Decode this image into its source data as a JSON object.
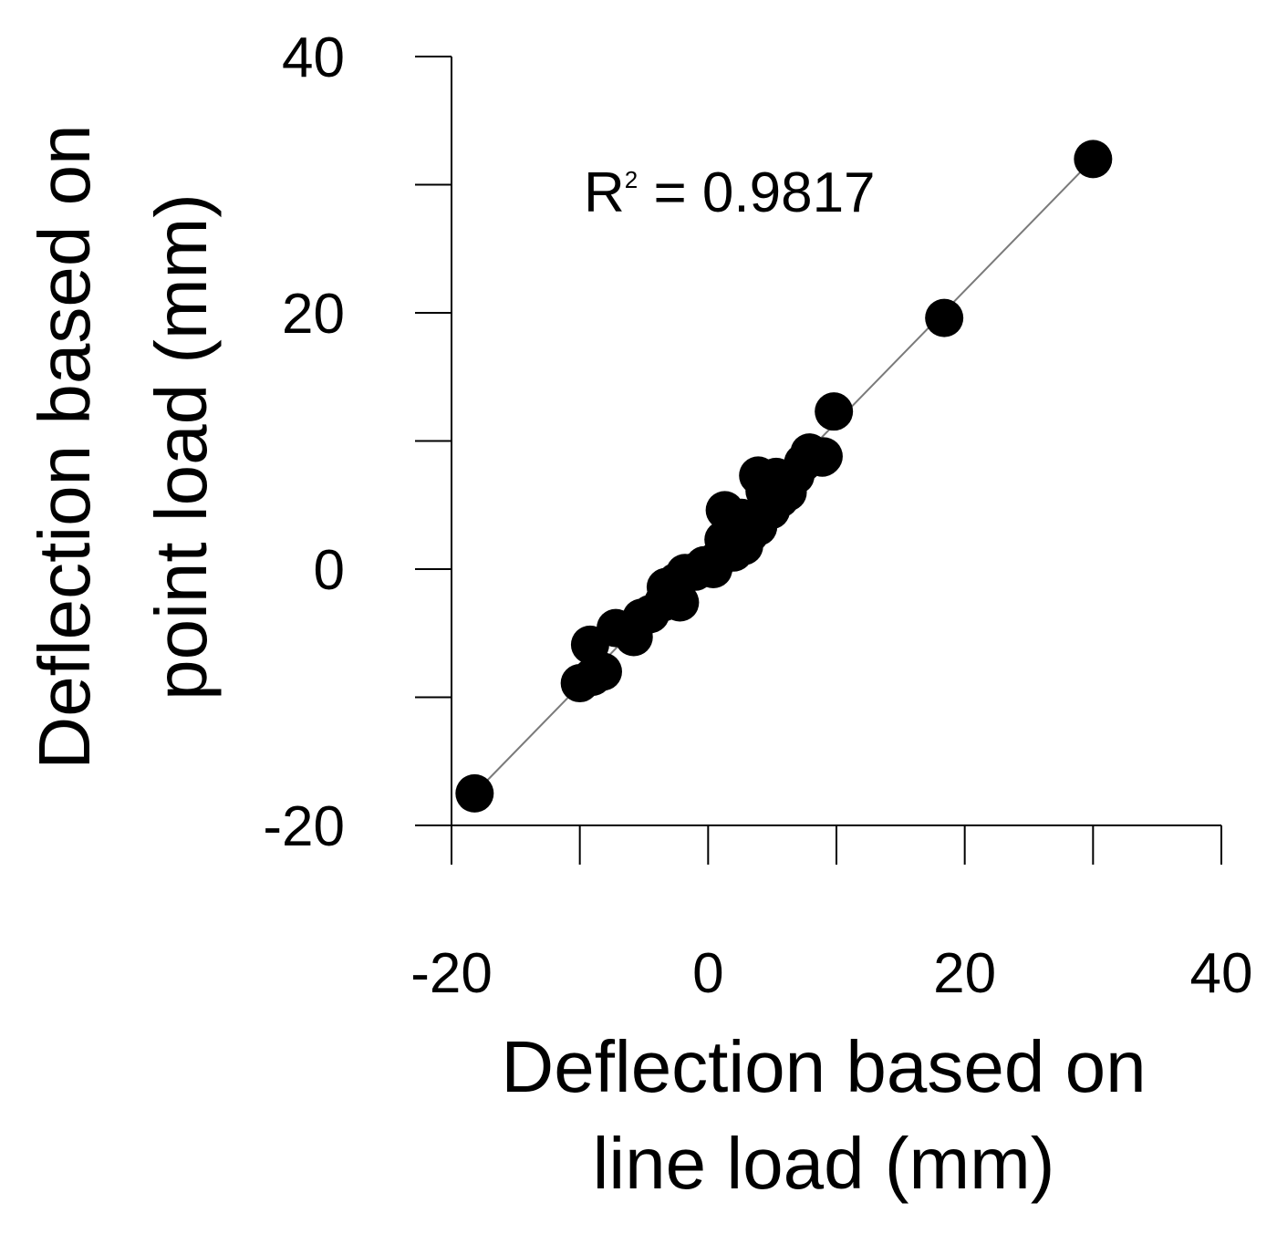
{
  "chart_data": {
    "type": "scatter",
    "title": "",
    "xlabel_lines": [
      "Deflection based on",
      "line load (mm)"
    ],
    "ylabel_lines": [
      "Deflection based on",
      "point load (mm)"
    ],
    "xlim": [
      -20,
      40
    ],
    "ylim": [
      -20,
      40
    ],
    "xticks": [
      -20,
      -10,
      0,
      10,
      20,
      30,
      40
    ],
    "yticks": [
      -20,
      -10,
      0,
      10,
      20,
      30,
      40
    ],
    "xtick_labels": [
      "-20",
      "0",
      "20",
      "40"
    ],
    "ytick_labels": [
      "-20",
      "0",
      "20",
      "40"
    ],
    "grid": false,
    "annotation": {
      "prefix": "R",
      "superscript": "2",
      "suffix": " = 0.9817"
    },
    "trendline": {
      "x": [
        -18.2,
        30
      ],
      "y": [
        -17.5,
        32
      ]
    },
    "series": [
      {
        "name": "Deflection",
        "points": [
          {
            "x": -18.2,
            "y": -17.5
          },
          {
            "x": -10,
            "y": -8.9
          },
          {
            "x": -9,
            "y": -8.4
          },
          {
            "x": -8.2,
            "y": -8.0
          },
          {
            "x": -9.2,
            "y": -5.9
          },
          {
            "x": -7.2,
            "y": -4.6
          },
          {
            "x": -5.8,
            "y": -5.3
          },
          {
            "x": -5.2,
            "y": -3.8
          },
          {
            "x": -4.5,
            "y": -3.5
          },
          {
            "x": -3.5,
            "y": -2.6
          },
          {
            "x": -2.2,
            "y": -2.6
          },
          {
            "x": -3.3,
            "y": -1.4
          },
          {
            "x": -2.5,
            "y": -1.0
          },
          {
            "x": -1.8,
            "y": -0.3
          },
          {
            "x": -1.0,
            "y": -0.2
          },
          {
            "x": -0.3,
            "y": 0.3
          },
          {
            "x": 0.4,
            "y": 0.0
          },
          {
            "x": 0.8,
            "y": 0.8
          },
          {
            "x": 1.4,
            "y": 1.5
          },
          {
            "x": 2.0,
            "y": 1.3
          },
          {
            "x": 2.8,
            "y": 1.8
          },
          {
            "x": 1.2,
            "y": 2.3
          },
          {
            "x": 2.1,
            "y": 2.9
          },
          {
            "x": 3.2,
            "y": 2.7
          },
          {
            "x": 3.9,
            "y": 3.3
          },
          {
            "x": 1.3,
            "y": 4.6
          },
          {
            "x": 2.6,
            "y": 4.0
          },
          {
            "x": 4.1,
            "y": 4.0
          },
          {
            "x": 4.9,
            "y": 4.6
          },
          {
            "x": 5.6,
            "y": 5.5
          },
          {
            "x": 4.4,
            "y": 6.1
          },
          {
            "x": 6.2,
            "y": 6.0
          },
          {
            "x": 3.9,
            "y": 7.3
          },
          {
            "x": 5.3,
            "y": 7.2
          },
          {
            "x": 6.8,
            "y": 7.3
          },
          {
            "x": 7.4,
            "y": 8.3
          },
          {
            "x": 7.9,
            "y": 9.1
          },
          {
            "x": 8.9,
            "y": 8.7
          },
          {
            "x": 9.0,
            "y": 8.8
          },
          {
            "x": 9.8,
            "y": 12.3
          },
          {
            "x": 18.4,
            "y": 19.6
          },
          {
            "x": 30,
            "y": 32
          }
        ]
      }
    ]
  }
}
